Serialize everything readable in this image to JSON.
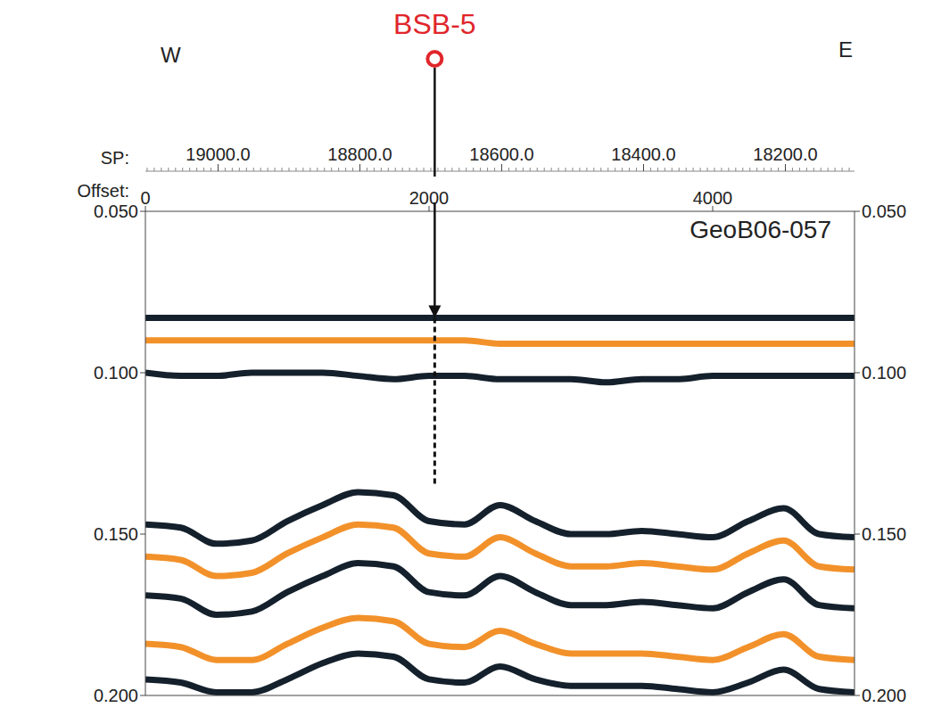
{
  "chart_data": {
    "type": "line",
    "title": "GeoB06-057",
    "xlabel": "Offset:",
    "x": [
      0,
      250,
      500,
      750,
      1000,
      1250,
      1500,
      1750,
      2000,
      2250,
      2500,
      2750,
      3000,
      3250,
      3500,
      3750,
      4000,
      4250,
      4500,
      4750,
      5000
    ],
    "xlim": [
      0,
      5000
    ],
    "xticks": [
      0,
      2000,
      4000
    ],
    "ylim": [
      0.05,
      0.2
    ],
    "yticks": [
      {
        "value": 0.05,
        "label": "0.050"
      },
      {
        "value": 0.1,
        "label": "0.100"
      },
      {
        "value": 0.15,
        "label": "0.150"
      },
      {
        "value": 0.2,
        "label": "0.200"
      }
    ],
    "sp_axis": {
      "label": "SP:",
      "lim": [
        19102.5,
        18102.5
      ],
      "ticks": [
        {
          "value": 19000,
          "label": "19000.0"
        },
        {
          "value": 18800,
          "label": "18800.0"
        },
        {
          "value": 18600,
          "label": "18600.0"
        },
        {
          "value": 18400,
          "label": "18400.0"
        },
        {
          "value": 18200,
          "label": "18200.0"
        }
      ]
    },
    "direction_labels": {
      "west": "W",
      "east": "E"
    },
    "annotations": [
      {
        "text": "BSB-5",
        "x": 2040,
        "y_top": 0.083,
        "y_bottom": 0.135,
        "color": "#e0262b"
      }
    ],
    "grid": false,
    "series": [
      {
        "color": "#14202c",
        "values": [
          0.083,
          0.083,
          0.083,
          0.083,
          0.083,
          0.083,
          0.083,
          0.083,
          0.083,
          0.083,
          0.083,
          0.083,
          0.083,
          0.083,
          0.083,
          0.083,
          0.083,
          0.083,
          0.083,
          0.083,
          0.083
        ]
      },
      {
        "color": "#f2912a",
        "values": [
          0.09,
          0.09,
          0.09,
          0.09,
          0.09,
          0.09,
          0.09,
          0.09,
          0.09,
          0.09,
          0.091,
          0.091,
          0.091,
          0.091,
          0.091,
          0.091,
          0.091,
          0.091,
          0.091,
          0.091,
          0.091
        ]
      },
      {
        "color": "#14202c",
        "values": [
          0.1,
          0.101,
          0.101,
          0.1,
          0.1,
          0.1,
          0.101,
          0.102,
          0.101,
          0.101,
          0.102,
          0.102,
          0.102,
          0.103,
          0.102,
          0.102,
          0.101,
          0.101,
          0.101,
          0.101,
          0.101
        ]
      },
      {
        "color": "#14202c",
        "values": [
          0.147,
          0.148,
          0.153,
          0.152,
          0.146,
          0.141,
          0.137,
          0.138,
          0.146,
          0.147,
          0.141,
          0.146,
          0.15,
          0.15,
          0.149,
          0.15,
          0.151,
          0.146,
          0.142,
          0.15,
          0.151
        ]
      },
      {
        "color": "#f2912a",
        "values": [
          0.157,
          0.158,
          0.163,
          0.162,
          0.156,
          0.151,
          0.147,
          0.148,
          0.156,
          0.157,
          0.151,
          0.156,
          0.16,
          0.16,
          0.159,
          0.16,
          0.161,
          0.156,
          0.152,
          0.16,
          0.161
        ]
      },
      {
        "color": "#14202c",
        "values": [
          0.169,
          0.17,
          0.175,
          0.174,
          0.168,
          0.163,
          0.159,
          0.16,
          0.168,
          0.169,
          0.163,
          0.168,
          0.172,
          0.172,
          0.171,
          0.172,
          0.173,
          0.168,
          0.164,
          0.172,
          0.173
        ]
      },
      {
        "color": "#f2912a",
        "values": [
          0.184,
          0.185,
          0.189,
          0.189,
          0.184,
          0.179,
          0.176,
          0.177,
          0.184,
          0.185,
          0.18,
          0.184,
          0.187,
          0.187,
          0.187,
          0.188,
          0.189,
          0.185,
          0.181,
          0.188,
          0.189
        ]
      },
      {
        "color": "#14202c",
        "values": [
          0.195,
          0.196,
          0.199,
          0.199,
          0.195,
          0.19,
          0.187,
          0.188,
          0.195,
          0.196,
          0.191,
          0.195,
          0.197,
          0.197,
          0.197,
          0.198,
          0.199,
          0.196,
          0.192,
          0.198,
          0.199
        ]
      }
    ]
  }
}
